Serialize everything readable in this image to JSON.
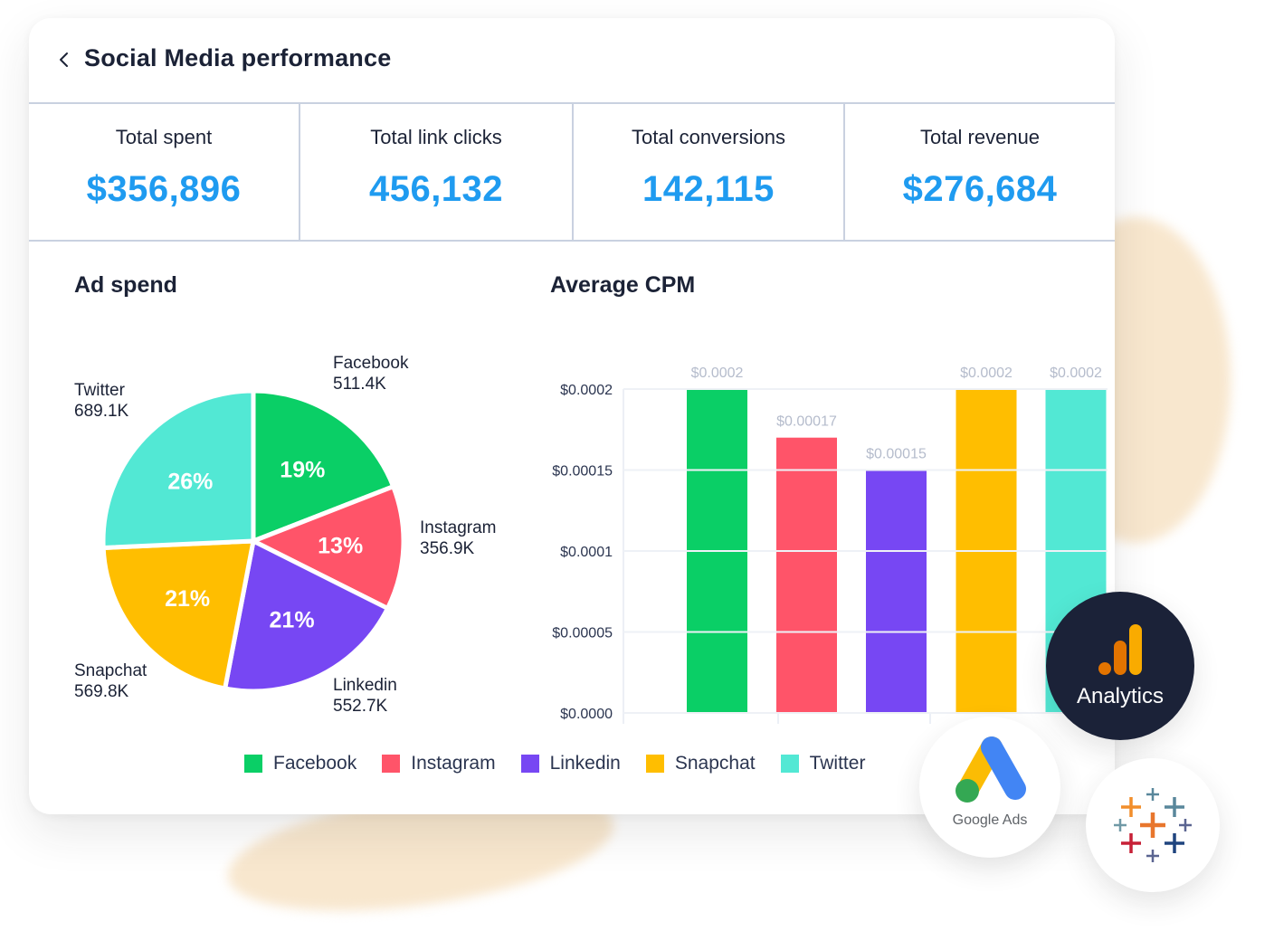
{
  "header": {
    "back_icon": "chevron-left-icon",
    "title": "Social Media performance"
  },
  "stats": [
    {
      "label": "Total spent",
      "value": "$356,896"
    },
    {
      "label": "Total link clicks",
      "value": "456,132"
    },
    {
      "label": "Total conversions",
      "value": "142,115"
    },
    {
      "label": "Total revenue",
      "value": "$276,684"
    }
  ],
  "colors": {
    "accent": "#1f9bf0",
    "Facebook": "#0acf66",
    "Instagram": "#ff5469",
    "Linkedin": "#7747f3",
    "Snapchat": "#ffbe00",
    "Twitter": "#52e8d4"
  },
  "legend": [
    "Facebook",
    "Instagram",
    "Linkedin",
    "Snapchat",
    "Twitter"
  ],
  "chart_data": [
    {
      "type": "pie",
      "title": "Ad spend",
      "categories": [
        "Facebook",
        "Instagram",
        "Linkedin",
        "Snapchat",
        "Twitter"
      ],
      "values": [
        511.4,
        356.9,
        552.7,
        569.8,
        689.1
      ],
      "value_labels": [
        "511.4K",
        "356.9K",
        "552.7K",
        "569.8K",
        "689.1K"
      ],
      "percent_labels": [
        "19%",
        "13%",
        "21%",
        "21%",
        "26%"
      ],
      "start": "12 o'clock, clockwise"
    },
    {
      "type": "bar",
      "title": "Average CPM",
      "categories": [
        "Facebook",
        "Instagram",
        "Linkedin",
        "Snapchat",
        "Twitter"
      ],
      "values": [
        0.0002,
        0.00017,
        0.00015,
        0.0002,
        0.0002
      ],
      "data_labels": [
        "$0.0002",
        "$0.00017",
        "$0.00015",
        "$0.0002",
        "$0.0002"
      ],
      "yticks": [
        0,
        5e-05,
        0.0001,
        0.00015,
        0.0002
      ],
      "ytick_labels": [
        "$0.0000",
        "$0.00005",
        "$0.0001",
        "$0.00015",
        "$0.0002"
      ],
      "ylim": [
        0,
        0.0002
      ],
      "grid": true,
      "xlabel": "",
      "ylabel": ""
    }
  ],
  "integrations": [
    {
      "name": "Analytics",
      "icon": "google-analytics-icon"
    },
    {
      "name": "Google Ads",
      "icon": "google-ads-icon"
    },
    {
      "name": "",
      "icon": "tableau-icon"
    }
  ]
}
